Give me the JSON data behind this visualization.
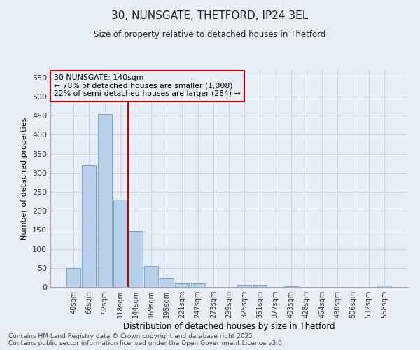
{
  "title1": "30, NUNSGATE, THETFORD, IP24 3EL",
  "title2": "Size of property relative to detached houses in Thetford",
  "xlabel": "Distribution of detached houses by size in Thetford",
  "ylabel": "Number of detached properties",
  "categories": [
    "40sqm",
    "66sqm",
    "92sqm",
    "118sqm",
    "144sqm",
    "169sqm",
    "195sqm",
    "221sqm",
    "247sqm",
    "273sqm",
    "299sqm",
    "325sqm",
    "351sqm",
    "377sqm",
    "403sqm",
    "428sqm",
    "454sqm",
    "480sqm",
    "506sqm",
    "532sqm",
    "558sqm"
  ],
  "values": [
    50,
    320,
    455,
    230,
    148,
    55,
    23,
    10,
    9,
    0,
    0,
    5,
    6,
    0,
    2,
    0,
    0,
    0,
    0,
    0,
    4
  ],
  "bar_color": "#b8d0ea",
  "bar_edge_color": "#6699cc",
  "vline_color": "#cc0000",
  "annotation_title": "30 NUNSGATE: 140sqm",
  "annotation_line1": "← 78% of detached houses are smaller (1,008)",
  "annotation_line2": "22% of semi-detached houses are larger (284) →",
  "annotation_box_color": "#cc0000",
  "ylim": [
    0,
    570
  ],
  "yticks": [
    0,
    50,
    100,
    150,
    200,
    250,
    300,
    350,
    400,
    450,
    500,
    550
  ],
  "footer1": "Contains HM Land Registry data © Crown copyright and database right 2025.",
  "footer2": "Contains public sector information licensed under the Open Government Licence v3.0.",
  "bg_color": "#e8eef8",
  "grid_color": "#c8d0e0"
}
